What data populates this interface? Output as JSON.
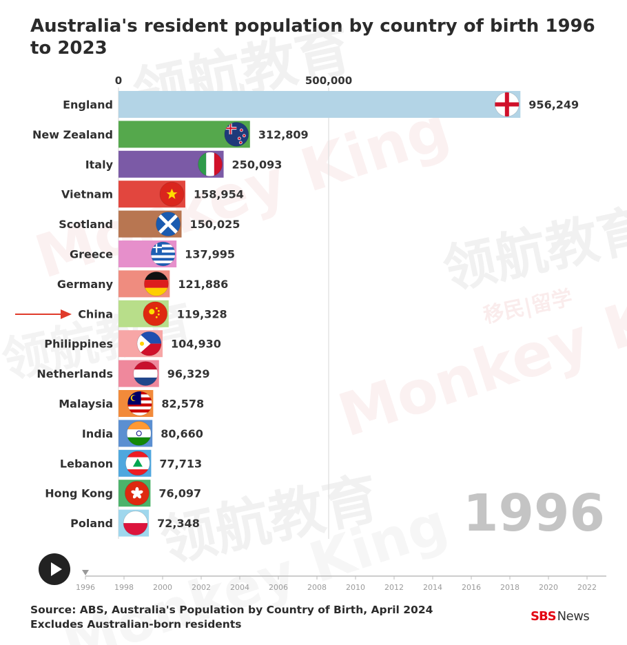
{
  "title": "Australia's resident population by country of birth 1996 to 2023",
  "source_line1": "Source: ABS, Australia's Population by Country of Birth, April 2024",
  "source_line2": "Excludes Australian-born residents",
  "brand": {
    "logo": "SBS",
    "suffix": "News"
  },
  "current_year": "1996",
  "watermark": {
    "brand": "Monkey King",
    "chinese": "领航教育",
    "sub": "移民|留学"
  },
  "highlight_arrow_target": "China",
  "icons": {
    "play": "play-icon",
    "arrow": "red-arrow-icon"
  },
  "chart_data": {
    "type": "bar",
    "orientation": "horizontal",
    "title": "Australia's resident population by country of birth 1996 to 2023",
    "xlim": [
      0,
      1000000
    ],
    "x_ticks": [
      0,
      500000
    ],
    "x_tick_labels": [
      "0",
      "500,000"
    ],
    "categories": [
      "England",
      "New Zealand",
      "Italy",
      "Vietnam",
      "Scotland",
      "Greece",
      "Germany",
      "China",
      "Philippines",
      "Netherlands",
      "Malaysia",
      "India",
      "Lebanon",
      "Hong Kong",
      "Poland"
    ],
    "values": [
      956249,
      312809,
      250093,
      158954,
      150025,
      137995,
      121886,
      119328,
      104930,
      96329,
      82578,
      80660,
      77713,
      76097,
      72348
    ],
    "value_labels": [
      "956,249",
      "312,809",
      "250,093",
      "158,954",
      "150,025",
      "137,995",
      "121,886",
      "119,328",
      "104,930",
      "96,329",
      "82,578",
      "80,660",
      "77,713",
      "76,097",
      "72,348"
    ],
    "colors": [
      "#b3d4e6",
      "#55a84c",
      "#7b5aa6",
      "#e2463e",
      "#b87651",
      "#e68fcb",
      "#ef8c7f",
      "#b8de8a",
      "#f7a6a6",
      "#ef889c",
      "#f28a3a",
      "#5b8fd1",
      "#4fa7de",
      "#4cb36b",
      "#9fd7ed"
    ],
    "flag_icons": [
      "england-flag-icon",
      "new-zealand-flag-icon",
      "italy-flag-icon",
      "vietnam-flag-icon",
      "scotland-flag-icon",
      "greece-flag-icon",
      "germany-flag-icon",
      "china-flag-icon",
      "philippines-flag-icon",
      "netherlands-flag-icon",
      "malaysia-flag-icon",
      "india-flag-icon",
      "lebanon-flag-icon",
      "hong-kong-flag-icon",
      "poland-flag-icon"
    ],
    "timeline_years": [
      "1996",
      "1998",
      "2000",
      "2002",
      "2004",
      "2006",
      "2008",
      "2010",
      "2012",
      "2014",
      "2016",
      "2018",
      "2020",
      "2022"
    ],
    "grid": true
  }
}
